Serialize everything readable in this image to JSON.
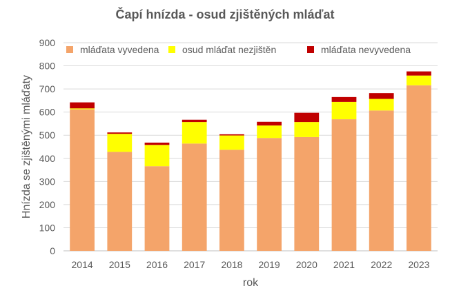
{
  "chart_data": {
    "type": "bar",
    "stacked": true,
    "title": "Čapí hnízda - osud zjištěných mláďat",
    "xlabel": "rok",
    "ylabel": "Hnízda se zjištěnými mláďaty",
    "ylim": [
      0,
      900
    ],
    "yticks": [
      "0",
      "100",
      "200",
      "300",
      "400",
      "500",
      "600",
      "700",
      "800",
      "900"
    ],
    "grid": true,
    "legend_position": "top",
    "categories": [
      "2014",
      "2015",
      "2016",
      "2017",
      "2018",
      "2019",
      "2020",
      "2021",
      "2022",
      "2023"
    ],
    "series": [
      {
        "name": "mláďata vyvedena",
        "color": "#F4A46A",
        "values": [
          612,
          428,
          366,
          464,
          437,
          488,
          492,
          569,
          607,
          716
        ]
      },
      {
        "name": "osud  mláďat nezjištěn",
        "color": "#FFFF00",
        "values": [
          4,
          78,
          92,
          93,
          62,
          54,
          65,
          75,
          50,
          42
        ]
      },
      {
        "name": "mláďata nevyvedena",
        "color": "#C00000",
        "values": [
          26,
          6,
          10,
          10,
          5,
          16,
          40,
          21,
          25,
          18
        ]
      }
    ]
  }
}
